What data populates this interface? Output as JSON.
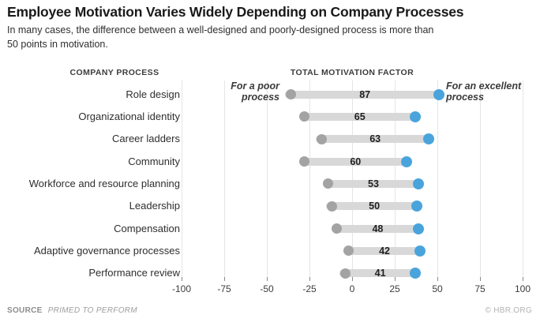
{
  "header": {
    "title": "Employee Motivation Varies Widely Depending on Company Processes",
    "subtitle": "In many cases, the difference between a well-designed and poorly-designed process is more than\n50 points in motivation."
  },
  "columns": {
    "process": "COMPANY PROCESS",
    "factor": "TOTAL MOTIVATION FACTOR"
  },
  "annotations": {
    "poor": "For a poor\nprocess",
    "excellent": "For an excellent\nprocess"
  },
  "footer": {
    "source_label": "SOURCE",
    "source_value": "PRIMED TO PERFORM",
    "credit": "© HBR.ORG"
  },
  "colors": {
    "poor_dot": "#a3a3a3",
    "excellent_dot": "#4aa4dc",
    "bar": "#d8d8d8",
    "gridline": "#e5e5e5"
  },
  "chart_data": {
    "type": "dumbbell",
    "title": "Employee Motivation Varies Widely Depending on Company Processes",
    "xlabel": "Total motivation factor",
    "ylabel": "Company process",
    "xlim": [
      -100,
      100
    ],
    "grid": true,
    "categories": [
      "Role design",
      "Organizational identity",
      "Career ladders",
      "Community",
      "Workforce and resource planning",
      "Leadership",
      "Compensation",
      "Adaptive governance processes",
      "Performance review"
    ],
    "series": [
      {
        "name": "For a poor process",
        "values": [
          -36,
          -28,
          -18,
          -28,
          -14,
          -12,
          -9,
          -2,
          -4
        ]
      },
      {
        "name": "For an excellent process",
        "values": [
          51,
          37,
          45,
          32,
          39,
          38,
          39,
          40,
          37
        ]
      }
    ],
    "bar_labels": [
      "87",
      "65",
      "63",
      "60",
      "53",
      "50",
      "48",
      "42",
      "41"
    ],
    "xticks": [
      "-100",
      "-75",
      "-50",
      "-25",
      "0",
      "25",
      "50",
      "75",
      "100"
    ]
  }
}
